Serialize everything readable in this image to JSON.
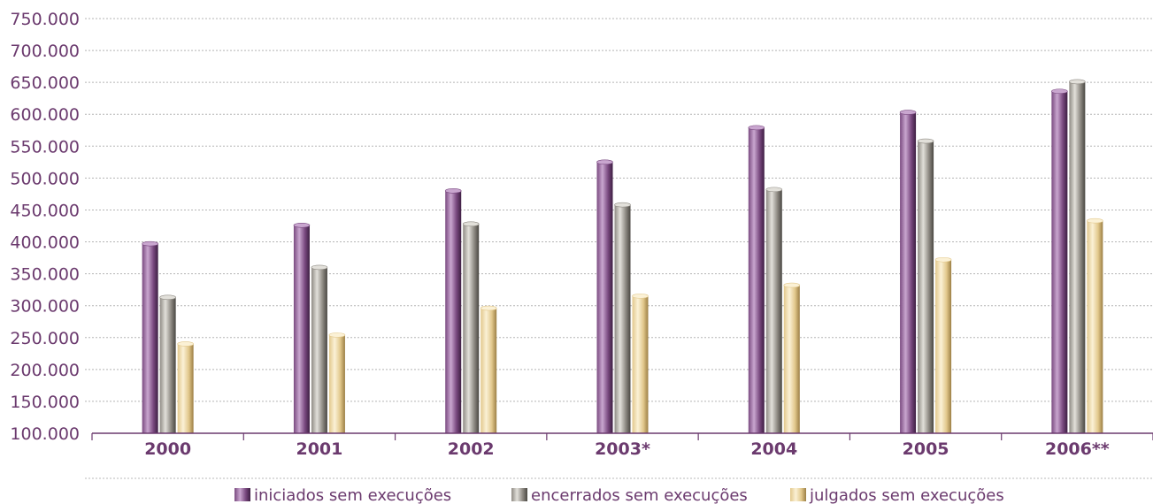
{
  "chart_data": {
    "type": "bar",
    "categories": [
      "2000",
      "2001",
      "2002",
      "2003*",
      "2004",
      "2005",
      "2006**"
    ],
    "series": [
      {
        "name": "iniciados sem execuções",
        "values": [
          397000,
          426000,
          480000,
          525000,
          579000,
          603000,
          636000
        ]
      },
      {
        "name": "encerrados sem execuções",
        "values": [
          313000,
          360000,
          428000,
          458000,
          482000,
          558000,
          651000
        ]
      },
      {
        "name": "julgados sem execuções",
        "values": [
          240000,
          254000,
          296000,
          315000,
          332000,
          372000,
          433000
        ]
      }
    ],
    "y_ticks": [
      "100.000",
      "150.000",
      "200.000",
      "250.000",
      "300.000",
      "350.000",
      "400.000",
      "450.000",
      "500.000",
      "550.000",
      "600.000",
      "650.000",
      "700.000",
      "750.000"
    ],
    "ylim": [
      100000,
      750000
    ],
    "grid": true,
    "legend_position": "bottom",
    "colors": {
      "iniciados": {
        "light": "#c9a6cf",
        "mid": "#7a4a80",
        "dark": "#3d1e42"
      },
      "encerrados": {
        "light": "#e2e0da",
        "mid": "#8f8b84",
        "dark": "#4a4742"
      },
      "julgados": {
        "light": "#fbf1d6",
        "mid": "#e2c88c",
        "dark": "#9c7f45"
      },
      "axis_text": "#6b3a6e"
    }
  }
}
